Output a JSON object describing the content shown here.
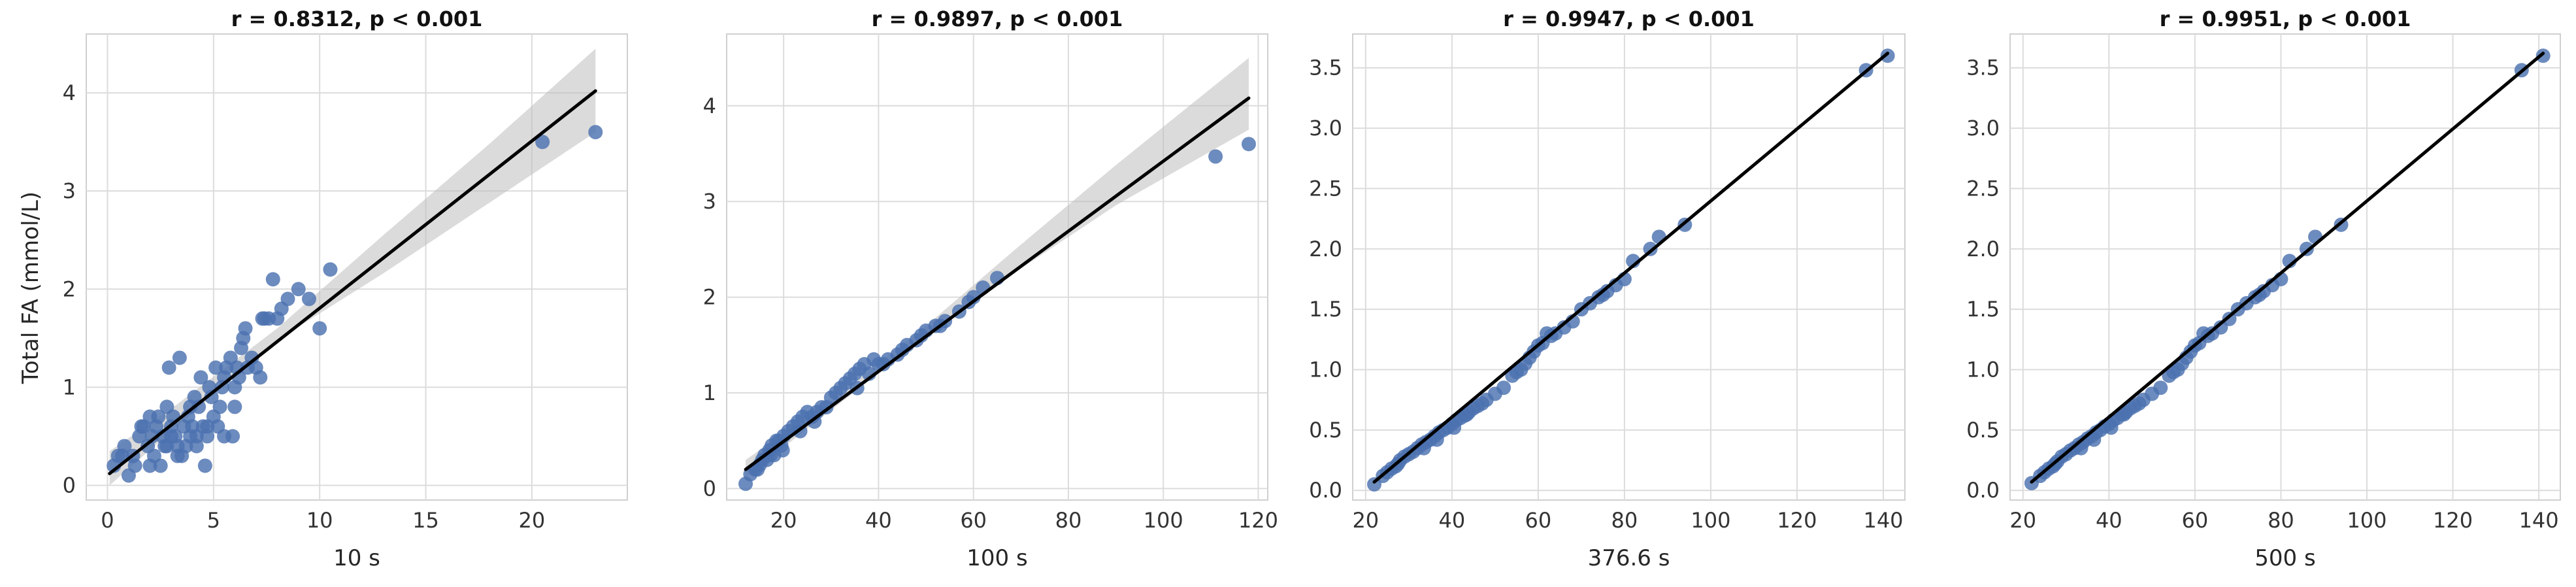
{
  "figure": {
    "ylabel": "Total FA (mmol/L)"
  },
  "chart_data": [
    {
      "type": "scatter",
      "title": "r = 0.8312, p < 0.001",
      "xlabel": "10 s",
      "ylabel": "Total FA (mmol/L)",
      "grid": true,
      "xlim": [
        -1,
        24.5
      ],
      "ylim": [
        -0.15,
        4.6
      ],
      "xticks": [
        0,
        5,
        10,
        15,
        20
      ],
      "yticks": [
        0,
        1,
        2,
        3,
        4
      ],
      "xtick_labels": [
        "0",
        "5",
        "10",
        "15",
        "20"
      ],
      "ytick_labels": [
        "0",
        "1",
        "2",
        "3",
        "4"
      ],
      "regression": {
        "x": [
          0.1,
          23.0
        ],
        "y": [
          0.12,
          4.02
        ]
      },
      "ci_band": {
        "x": [
          0.1,
          3.0,
          8.0,
          13.0,
          18.0,
          23.0
        ],
        "lower": [
          0.0,
          0.55,
          1.48,
          2.16,
          2.88,
          3.6
        ],
        "upper": [
          0.35,
          0.78,
          1.6,
          2.55,
          3.48,
          4.45
        ]
      },
      "points": {
        "x": [
          0.3,
          0.5,
          0.8,
          1.0,
          1.2,
          1.5,
          1.7,
          1.9,
          2.0,
          2.1,
          2.2,
          2.3,
          2.5,
          2.6,
          2.7,
          2.8,
          2.9,
          3.0,
          3.1,
          3.2,
          3.3,
          3.4,
          3.5,
          3.6,
          3.7,
          3.8,
          3.9,
          4.0,
          4.1,
          4.2,
          4.3,
          4.4,
          4.5,
          4.6,
          4.7,
          4.8,
          4.9,
          5.0,
          5.1,
          5.2,
          5.3,
          5.4,
          5.5,
          5.6,
          5.8,
          6.0,
          6.1,
          6.2,
          6.3,
          6.4,
          6.5,
          6.6,
          6.8,
          7.0,
          7.2,
          7.4,
          7.6,
          7.8,
          8.0,
          8.2,
          8.5,
          9.0,
          9.5,
          10.0,
          10.5,
          1.6,
          2.4,
          3.0,
          4.2,
          5.5,
          2.0,
          3.3,
          0.7,
          1.3,
          4.7,
          6.0,
          2.8,
          3.9,
          5.9,
          7.3,
          20.5,
          23.0
        ],
        "y": [
          0.2,
          0.3,
          0.4,
          0.1,
          0.3,
          0.5,
          0.6,
          0.4,
          0.7,
          0.5,
          0.3,
          0.6,
          0.2,
          0.5,
          0.4,
          0.8,
          1.2,
          0.6,
          0.7,
          0.5,
          0.4,
          1.3,
          0.3,
          0.6,
          0.4,
          0.7,
          0.5,
          0.6,
          0.9,
          0.5,
          0.8,
          1.1,
          0.6,
          0.2,
          0.5,
          1.0,
          0.9,
          0.7,
          1.2,
          0.6,
          0.8,
          1.0,
          1.1,
          1.2,
          1.3,
          1.0,
          1.2,
          1.1,
          1.4,
          1.5,
          1.6,
          1.2,
          1.3,
          1.2,
          1.1,
          1.7,
          1.7,
          2.1,
          1.7,
          1.8,
          1.9,
          2.0,
          1.9,
          1.6,
          2.2,
          0.6,
          0.7,
          0.5,
          0.4,
          0.5,
          0.2,
          0.3,
          0.3,
          0.2,
          0.6,
          0.8,
          0.4,
          0.8,
          0.5,
          1.7,
          3.5,
          3.6
        ]
      }
    },
    {
      "type": "scatter",
      "title": "r = 0.9897, p < 0.001",
      "xlabel": "100 s",
      "ylabel": "",
      "grid": true,
      "xlim": [
        8,
        122
      ],
      "ylim": [
        -0.12,
        4.75
      ],
      "xticks": [
        20,
        40,
        60,
        80,
        100,
        120
      ],
      "yticks": [
        0,
        1,
        2,
        3,
        4
      ],
      "xtick_labels": [
        "20",
        "40",
        "60",
        "80",
        "100",
        "120"
      ],
      "ytick_labels": [
        "0",
        "1",
        "2",
        "3",
        "4"
      ],
      "regression": {
        "x": [
          12,
          118
        ],
        "y": [
          0.2,
          4.08
        ]
      },
      "ci_band": {
        "x": [
          12,
          30,
          50,
          70,
          90,
          118
        ],
        "lower": [
          0.12,
          0.82,
          1.58,
          2.3,
          2.96,
          3.75
        ],
        "upper": [
          0.3,
          0.92,
          1.7,
          2.55,
          3.38,
          4.5
        ]
      },
      "points": {
        "x": [
          12,
          13,
          14,
          15,
          15.5,
          16,
          16.5,
          17,
          17.5,
          18,
          18.5,
          19,
          19.5,
          20,
          21,
          22,
          23,
          24,
          25,
          26,
          27,
          28,
          30,
          31,
          32,
          33,
          34,
          35,
          36,
          37,
          38,
          39,
          40,
          42,
          44,
          46,
          48,
          50,
          52,
          54,
          57,
          59,
          60,
          62,
          65,
          14.5,
          17.2,
          19.8,
          23.5,
          26.5,
          29,
          35.5,
          41,
          45,
          49,
          53,
          111,
          118
        ],
        "y": [
          0.05,
          0.15,
          0.2,
          0.25,
          0.3,
          0.35,
          0.3,
          0.4,
          0.45,
          0.35,
          0.5,
          0.5,
          0.45,
          0.55,
          0.6,
          0.65,
          0.7,
          0.75,
          0.8,
          0.75,
          0.8,
          0.85,
          0.95,
          1.0,
          1.05,
          1.1,
          1.15,
          1.2,
          1.25,
          1.3,
          1.2,
          1.35,
          1.3,
          1.35,
          1.4,
          1.5,
          1.55,
          1.65,
          1.7,
          1.75,
          1.85,
          1.95,
          2.0,
          2.1,
          2.2,
          0.2,
          0.35,
          0.4,
          0.6,
          0.7,
          0.85,
          1.05,
          1.3,
          1.45,
          1.6,
          1.7,
          3.47,
          3.6
        ]
      }
    },
    {
      "type": "scatter",
      "title": "r = 0.9947, p < 0.001",
      "xlabel": "376.6 s",
      "ylabel": "",
      "grid": true,
      "xlim": [
        17,
        145
      ],
      "ylim": [
        -0.08,
        3.78
      ],
      "xticks": [
        20,
        40,
        60,
        80,
        100,
        120,
        140
      ],
      "yticks": [
        0.0,
        0.5,
        1.0,
        1.5,
        2.0,
        2.5,
        3.0,
        3.5
      ],
      "xtick_labels": [
        "20",
        "40",
        "60",
        "80",
        "100",
        "120",
        "140"
      ],
      "ytick_labels": [
        "0.0",
        "0.5",
        "1.0",
        "1.5",
        "2.0",
        "2.5",
        "3.0",
        "3.5"
      ],
      "regression": {
        "x": [
          22,
          141
        ],
        "y": [
          0.07,
          3.62
        ]
      },
      "ci_band": null,
      "points": {
        "x": [
          22,
          24,
          25,
          26,
          27,
          28,
          29,
          30,
          31,
          32,
          33,
          34,
          35,
          36,
          37,
          38,
          39,
          40,
          41,
          42,
          43,
          44,
          45,
          46,
          48,
          50,
          52,
          54,
          56,
          57,
          58,
          59,
          60,
          61,
          62,
          64,
          66,
          68,
          70,
          72,
          74,
          76,
          78,
          80,
          82,
          86,
          88,
          94,
          27.5,
          33.5,
          36.5,
          40.5,
          43.5,
          47,
          55,
          63,
          75,
          136,
          141
        ],
        "y": [
          0.05,
          0.12,
          0.15,
          0.18,
          0.2,
          0.25,
          0.28,
          0.3,
          0.32,
          0.35,
          0.38,
          0.4,
          0.42,
          0.45,
          0.48,
          0.5,
          0.52,
          0.55,
          0.58,
          0.6,
          0.62,
          0.65,
          0.68,
          0.7,
          0.75,
          0.8,
          0.85,
          0.95,
          1.0,
          1.05,
          1.1,
          1.15,
          1.2,
          1.22,
          1.3,
          1.3,
          1.35,
          1.4,
          1.5,
          1.55,
          1.6,
          1.65,
          1.7,
          1.75,
          1.9,
          2.0,
          2.1,
          2.2,
          0.22,
          0.35,
          0.42,
          0.52,
          0.63,
          0.72,
          0.98,
          1.28,
          1.62,
          3.48,
          3.6
        ]
      }
    },
    {
      "type": "scatter",
      "title": "r = 0.9951, p < 0.001",
      "xlabel": "500 s",
      "ylabel": "",
      "grid": true,
      "xlim": [
        17,
        145
      ],
      "ylim": [
        -0.08,
        3.78
      ],
      "xticks": [
        20,
        40,
        60,
        80,
        100,
        120,
        140
      ],
      "yticks": [
        0.0,
        0.5,
        1.0,
        1.5,
        2.0,
        2.5,
        3.0,
        3.5
      ],
      "xtick_labels": [
        "20",
        "40",
        "60",
        "80",
        "100",
        "120",
        "140"
      ],
      "ytick_labels": [
        "0.0",
        "0.5",
        "1.0",
        "1.5",
        "2.0",
        "2.5",
        "3.0",
        "3.5"
      ],
      "regression": {
        "x": [
          22,
          141
        ],
        "y": [
          0.07,
          3.62
        ]
      },
      "ci_band": null,
      "points": {
        "x": [
          22,
          24,
          25,
          26,
          27,
          28,
          29,
          30,
          31,
          32,
          33,
          34,
          35,
          36,
          37,
          38,
          39,
          40,
          41,
          42,
          43,
          44,
          45,
          46,
          48,
          50,
          52,
          54,
          56,
          57,
          58,
          59,
          60,
          61,
          62,
          64,
          66,
          68,
          70,
          72,
          74,
          76,
          78,
          80,
          82,
          86,
          88,
          94,
          27.5,
          33.5,
          36.5,
          40.5,
          43.5,
          47,
          55,
          63,
          75,
          136,
          141
        ],
        "y": [
          0.06,
          0.12,
          0.15,
          0.18,
          0.2,
          0.24,
          0.28,
          0.3,
          0.33,
          0.35,
          0.38,
          0.4,
          0.43,
          0.45,
          0.48,
          0.5,
          0.53,
          0.55,
          0.58,
          0.6,
          0.63,
          0.65,
          0.68,
          0.7,
          0.75,
          0.8,
          0.85,
          0.95,
          1.0,
          1.05,
          1.1,
          1.15,
          1.2,
          1.22,
          1.3,
          1.3,
          1.35,
          1.42,
          1.5,
          1.55,
          1.6,
          1.65,
          1.7,
          1.75,
          1.9,
          2.0,
          2.1,
          2.2,
          0.22,
          0.35,
          0.42,
          0.52,
          0.63,
          0.72,
          0.98,
          1.28,
          1.62,
          3.48,
          3.6
        ]
      }
    }
  ]
}
